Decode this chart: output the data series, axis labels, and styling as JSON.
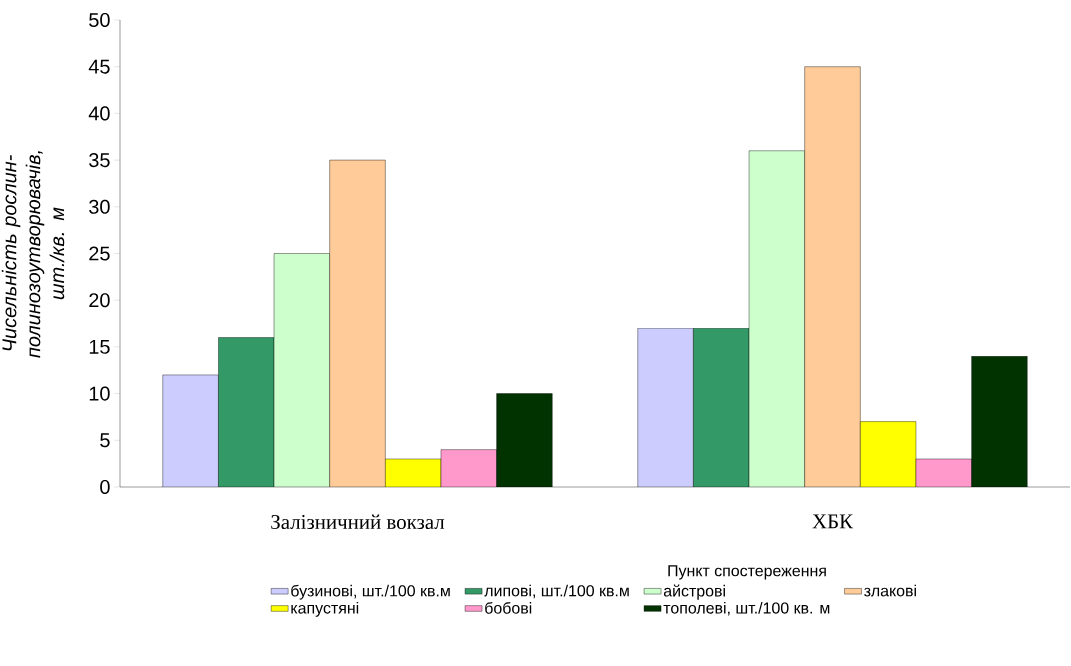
{
  "chart_data": {
    "type": "bar",
    "ylabel": "Чисельність рослин-полинозоутворювачів, шт./кв. м",
    "xlabel": "Пункт спостереження",
    "categories": [
      "Залізничний вокзал",
      "ХБК"
    ],
    "series": [
      {
        "name": "бузинові, шт./100 кв.м",
        "color": "#ccccff",
        "values": [
          12,
          17
        ]
      },
      {
        "name": "липові, шт./100 кв.м",
        "color": "#339966",
        "values": [
          16,
          17
        ]
      },
      {
        "name": "айстрові",
        "color": "#ccffcc",
        "values": [
          25,
          36
        ]
      },
      {
        "name": "злакові",
        "color": "#ffcc99",
        "values": [
          35,
          45
        ]
      },
      {
        "name": "капустяні",
        "color": "#ffff00",
        "values": [
          3,
          7
        ]
      },
      {
        "name": "бобові",
        "color": "#ff99cc",
        "values": [
          4,
          3
        ]
      },
      {
        "name": "тополеві, шт./100 кв. м",
        "color": "#003300",
        "values": [
          10,
          14
        ]
      }
    ],
    "ylim": [
      0,
      50
    ],
    "yticks": [
      0,
      5,
      10,
      15,
      20,
      25,
      30,
      35,
      40,
      45,
      50
    ],
    "grid": false,
    "legend": "bottom"
  }
}
